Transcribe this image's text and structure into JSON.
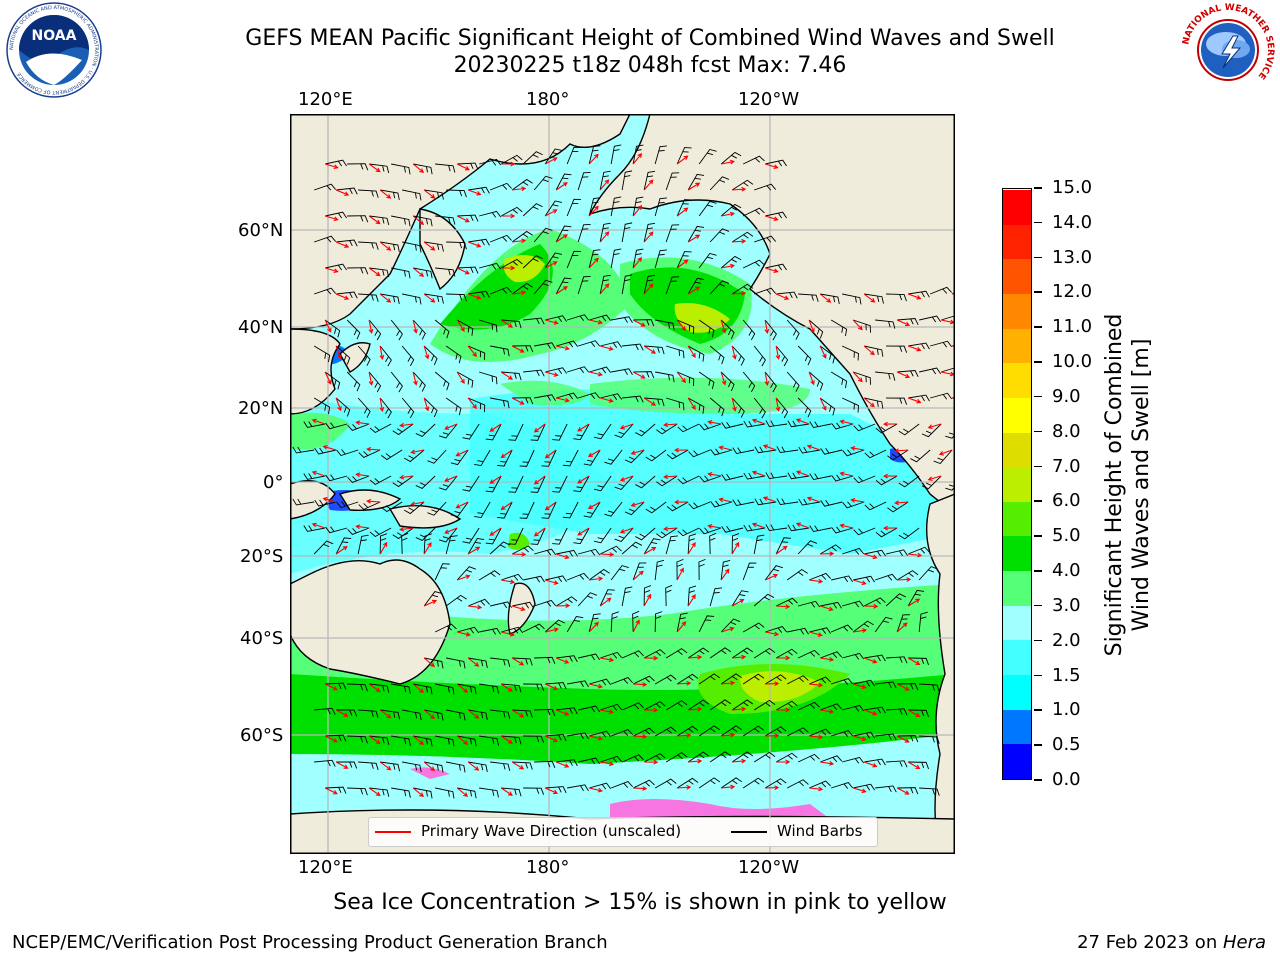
{
  "header": {
    "title_line1": "GEFS MEAN Pacific Significant Height of Combined Wind Waves and Swell",
    "title_line2": "20230225 t18z 048h fcst   Max: 7.46"
  },
  "logos": {
    "noaa_text": "NOAA",
    "noaa_ring_text": "NATIONAL OCEANIC AND ATMOSPHERIC ADMINISTRATION · U.S. DEPARTMENT OF COMMERCE",
    "nws_ring_text": "NATIONAL WEATHER SERVICE"
  },
  "map": {
    "lon_labels_top": [
      "120°E",
      "180°",
      "120°W"
    ],
    "lon_labels_bottom": [
      "120°E",
      "180°",
      "120°W"
    ],
    "lat_labels": [
      "60°N",
      "40°N",
      "20°N",
      "0°",
      "20°S",
      "40°S",
      "60°S"
    ],
    "colors": {
      "land": "#efecdc",
      "coast": "#000000",
      "grid": "#b8b8b8",
      "wave_arrow": "#ff0000",
      "wind_barb": "#000000"
    },
    "legend": {
      "wave_label": "Primary Wave Direction (unscaled)",
      "barb_label": "Wind Barbs"
    }
  },
  "colorbar": {
    "title_line1": "Significant Height of Combined",
    "title_line2": "Wind Waves and Swell [m]",
    "tick_labels": [
      "0.0",
      "0.5",
      "1.0",
      "1.5",
      "2.0",
      "3.0",
      "4.0",
      "5.0",
      "6.0",
      "7.0",
      "8.0",
      "9.0",
      "10.0",
      "11.0",
      "12.0",
      "13.0",
      "14.0",
      "15.0"
    ],
    "colors": [
      "#0000ff",
      "#0077ff",
      "#00ffff",
      "#44ffff",
      "#a0ffff",
      "#55ff77",
      "#00e000",
      "#55ee00",
      "#bbee00",
      "#dddd00",
      "#ffff00",
      "#ffdd00",
      "#ffb000",
      "#ff8800",
      "#ff5500",
      "#ff2200",
      "#ff0000"
    ]
  },
  "notes": {
    "ice": "Sea Ice Concentration > 15% is shown in pink to yellow"
  },
  "footer": {
    "left": "NCEP/EMC/Verification Post Processing Product Generation Branch",
    "right_prefix": "27 Feb 2023 on ",
    "right_machine": "Hera"
  }
}
